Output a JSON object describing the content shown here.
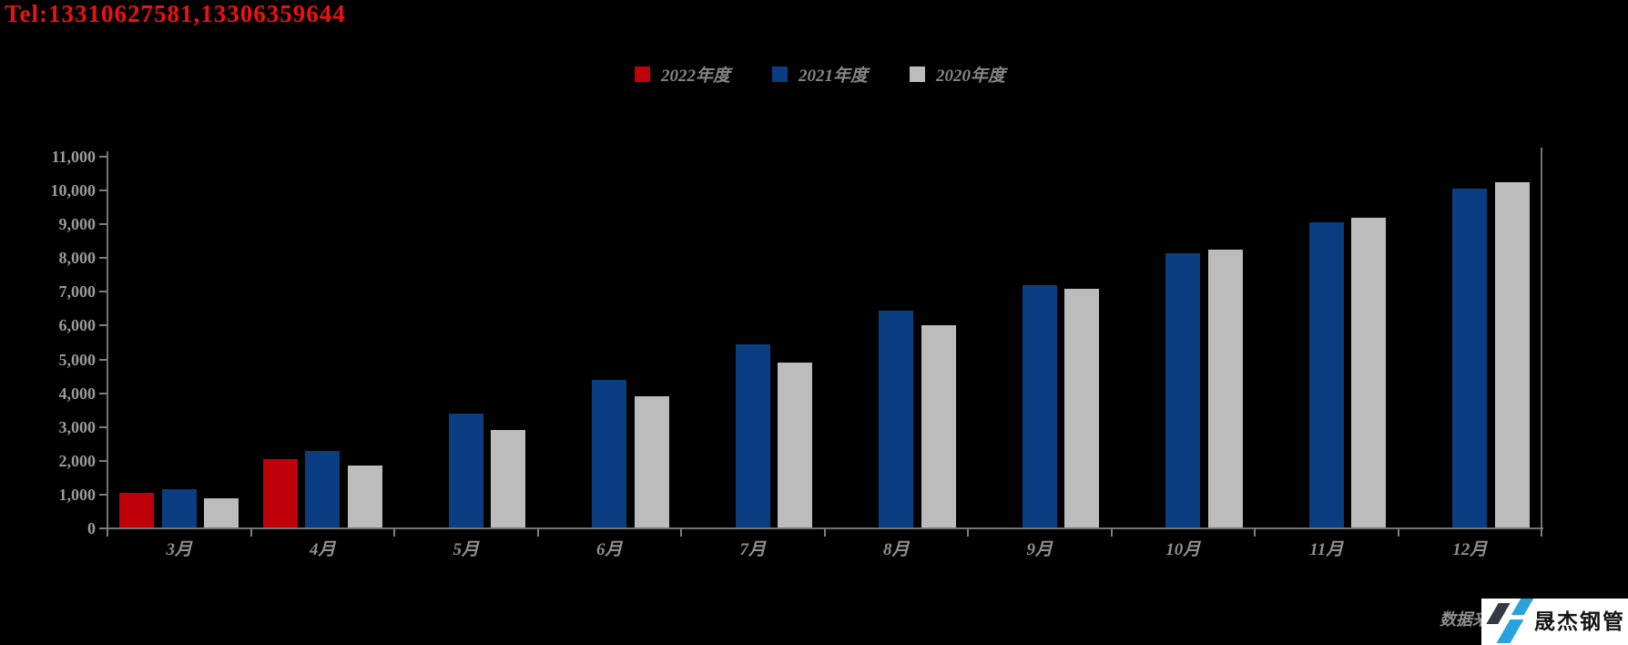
{
  "page": {
    "background": "#000000"
  },
  "header": {
    "tel_text": "Tel:13310627581,13306359644",
    "tel_color": "#ee1111"
  },
  "chart_data": {
    "type": "bar",
    "title": "",
    "xlabel": "",
    "ylabel": "",
    "categories": [
      "3月",
      "4月",
      "5月",
      "6月",
      "7月",
      "8月",
      "9月",
      "10月",
      "11月",
      "12月"
    ],
    "series": [
      {
        "name": "2022年度",
        "color": "#c00008",
        "values": [
          1050,
          2050,
          null,
          null,
          null,
          null,
          null,
          null,
          null,
          null
        ]
      },
      {
        "name": "2021年度",
        "color": "#0a3d82",
        "values": [
          1150,
          2300,
          3400,
          4400,
          5450,
          6450,
          7200,
          8150,
          9050,
          10050
        ]
      },
      {
        "name": "2020年度",
        "color": "#bcbcbc",
        "values": [
          900,
          1850,
          2900,
          3900,
          4900,
          6000,
          7100,
          8250,
          9200,
          10250
        ]
      }
    ],
    "ylim": [
      0,
      11000
    ],
    "ytick_step": 1000,
    "ytick_labels": [
      "0",
      "1,000",
      "2,000",
      "3,000",
      "4,000",
      "5,000",
      "6,000",
      "7,000",
      "8,000",
      "9,000",
      "10,000",
      "11,000"
    ],
    "grid": false,
    "legend_position": "top-center"
  },
  "footer": {
    "source_fragment": "数据来",
    "logo_text": "晟杰钢管",
    "logo_colors": {
      "dark": "#333a42",
      "blue": "#2aa2de",
      "background": "#ffffff"
    }
  }
}
